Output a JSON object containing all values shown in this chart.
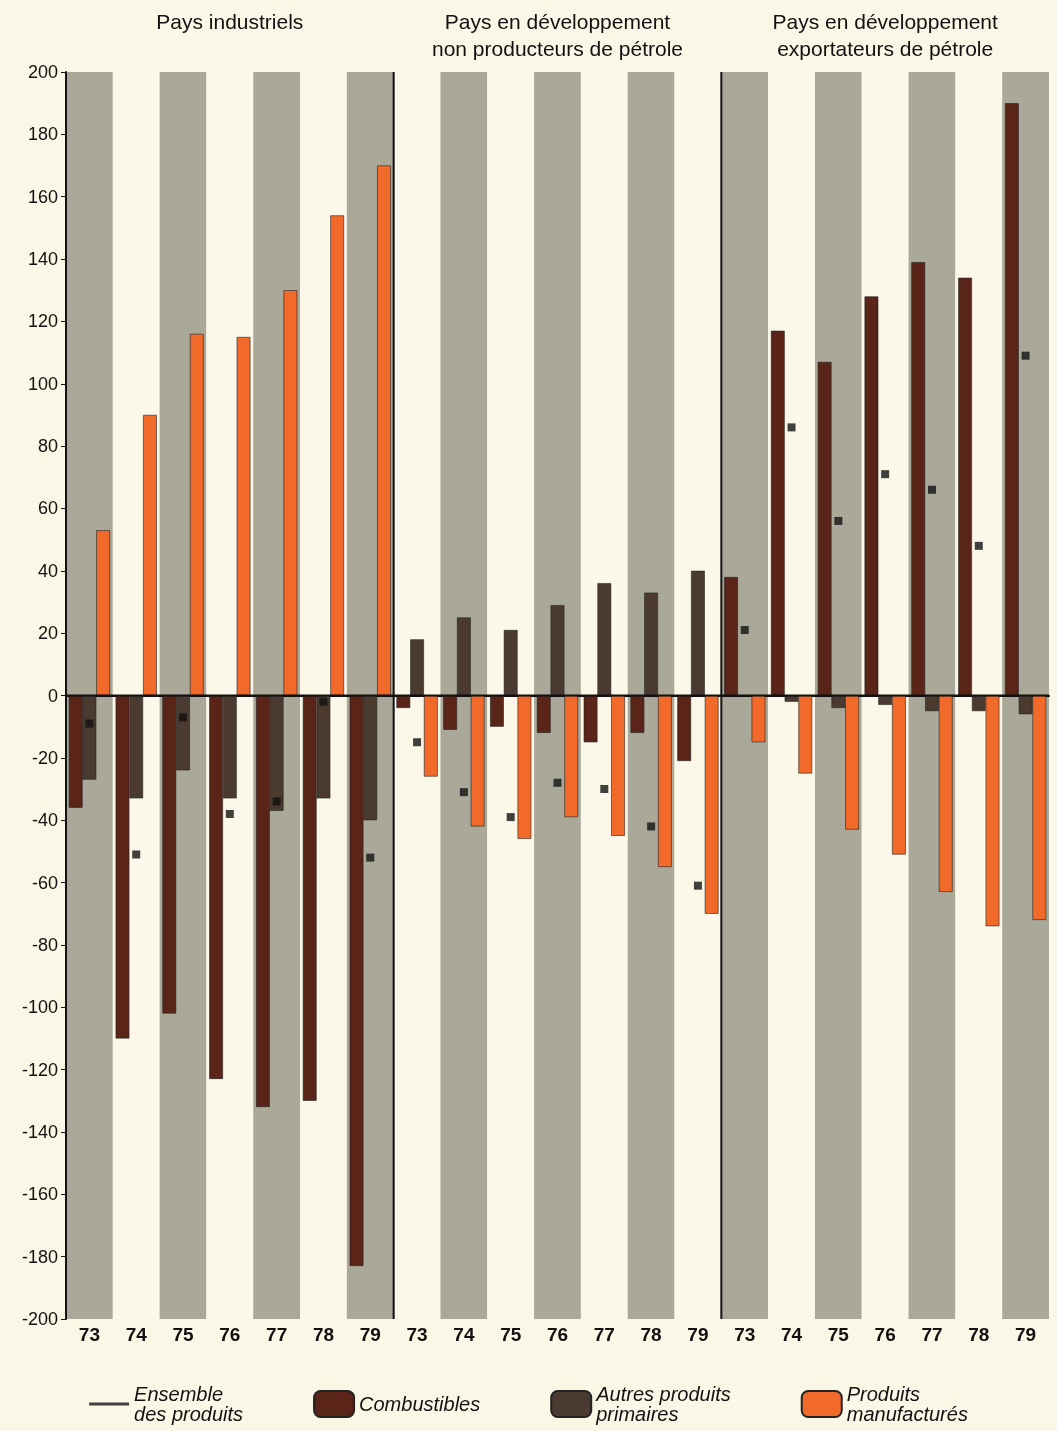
{
  "chart_data": {
    "type": "bar",
    "annotations": [
      "Pays industriels",
      "Pays en développement\nnon producteurs de pétrole",
      "Pays en développement\nexportateurs de pétrole"
    ],
    "categories": [
      "73",
      "74",
      "75",
      "76",
      "77",
      "78",
      "79",
      "73",
      "74",
      "75",
      "76",
      "77",
      "78",
      "79",
      "73",
      "74",
      "75",
      "76",
      "77",
      "78",
      "79"
    ],
    "series": [
      {
        "name": "Ensemble\ndes produits",
        "type": "scatter",
        "marker": "square",
        "color": "#111111",
        "values": [
          -9,
          -51,
          -7,
          -38,
          -34,
          -2,
          -52,
          -15,
          -31,
          -39,
          -28,
          -30,
          -42,
          -61,
          21,
          86,
          56,
          71,
          66,
          48,
          109
        ]
      },
      {
        "name": "Combustibles",
        "color": "#5a2418",
        "values": [
          -36,
          -110,
          -102,
          -123,
          -132,
          -130,
          -183,
          -4,
          -11,
          -10,
          -12,
          -15,
          -12,
          -21,
          38,
          117,
          107,
          128,
          139,
          134,
          190
        ]
      },
      {
        "name": "Autres produits\nprimaires",
        "color": "#4b3a30",
        "values": [
          -27,
          -33,
          -24,
          -33,
          -37,
          -33,
          -40,
          18,
          25,
          21,
          29,
          36,
          33,
          40,
          null,
          -2,
          -4,
          -3,
          -5,
          -5,
          -6
        ]
      },
      {
        "name": "Produits\nmanufacturés",
        "color": "#f26a2a",
        "values": [
          53,
          90,
          116,
          115,
          130,
          154,
          170,
          -26,
          -42,
          -46,
          -39,
          -45,
          -55,
          -70,
          -15,
          -25,
          -43,
          -51,
          -63,
          -74,
          -72
        ]
      }
    ],
    "ylim": [
      -200,
      200
    ],
    "yticks": [
      -200,
      -180,
      -160,
      -140,
      -120,
      -100,
      -80,
      -60,
      -40,
      -20,
      0,
      20,
      40,
      60,
      80,
      100,
      120,
      140,
      160,
      180,
      200
    ],
    "legend": "bottom"
  }
}
